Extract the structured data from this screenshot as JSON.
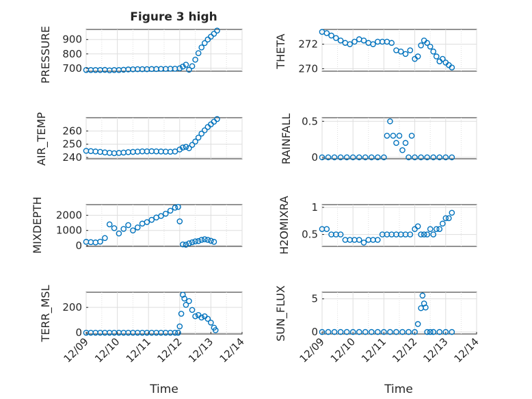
{
  "figure": {
    "title": "Figure 3 high",
    "xlabel": "Time"
  },
  "colors": {
    "marker": "#0072BD",
    "axis": "#262626",
    "grid": "#dddddd",
    "background": "#ffffff"
  },
  "chart_data": [
    {
      "type": "scatter",
      "id": "pressure",
      "ylabel": "PRESSURE",
      "ylim": [
        680,
        970
      ],
      "yticks": [
        700,
        800,
        900
      ],
      "xlim": [
        0,
        5
      ],
      "xticks": [],
      "x": [
        0.0,
        0.15,
        0.3,
        0.45,
        0.6,
        0.75,
        0.9,
        1.05,
        1.2,
        1.35,
        1.5,
        1.65,
        1.8,
        1.95,
        2.1,
        2.25,
        2.4,
        2.55,
        2.7,
        2.85,
        3.0,
        3.1,
        3.2,
        3.3,
        3.4,
        3.5,
        3.6,
        3.7,
        3.8,
        3.9,
        4.0,
        4.1,
        4.2
      ],
      "y": [
        688,
        688,
        688,
        688,
        689,
        686,
        688,
        688,
        690,
        692,
        693,
        694,
        694,
        694,
        695,
        695,
        696,
        696,
        697,
        697,
        700,
        712,
        725,
        690,
        715,
        760,
        805,
        845,
        875,
        900,
        920,
        940,
        962
      ]
    },
    {
      "type": "scatter",
      "id": "theta",
      "ylabel": "THETA",
      "ylim": [
        269.8,
        273.2
      ],
      "yticks": [
        270,
        272
      ],
      "xlim": [
        0,
        5
      ],
      "xticks": [],
      "x": [
        0.0,
        0.15,
        0.3,
        0.45,
        0.6,
        0.75,
        0.9,
        1.05,
        1.2,
        1.35,
        1.5,
        1.65,
        1.8,
        1.95,
        2.1,
        2.25,
        2.4,
        2.55,
        2.7,
        2.85,
        3.0,
        3.1,
        3.2,
        3.3,
        3.4,
        3.5,
        3.6,
        3.7,
        3.8,
        3.9,
        4.0,
        4.1,
        4.2
      ],
      "y": [
        273.0,
        272.9,
        272.7,
        272.5,
        272.3,
        272.1,
        272.0,
        272.2,
        272.4,
        272.3,
        272.1,
        272.0,
        272.2,
        272.2,
        272.2,
        272.1,
        271.5,
        271.4,
        271.2,
        271.5,
        270.8,
        271.0,
        271.9,
        272.3,
        272.1,
        271.8,
        271.4,
        271.0,
        270.6,
        270.8,
        270.5,
        270.3,
        270.1
      ]
    },
    {
      "type": "scatter",
      "id": "air-temp",
      "ylabel": "AIR_TEMP",
      "ylim": [
        239,
        270
      ],
      "yticks": [
        240,
        250,
        260
      ],
      "xlim": [
        0,
        5
      ],
      "xticks": [],
      "x": [
        0.0,
        0.15,
        0.3,
        0.45,
        0.6,
        0.75,
        0.9,
        1.05,
        1.2,
        1.35,
        1.5,
        1.65,
        1.8,
        1.95,
        2.1,
        2.25,
        2.4,
        2.55,
        2.7,
        2.85,
        3.0,
        3.1,
        3.2,
        3.3,
        3.4,
        3.5,
        3.6,
        3.7,
        3.8,
        3.9,
        4.0,
        4.1,
        4.2
      ],
      "y": [
        245,
        244.8,
        244.5,
        244.2,
        243.8,
        243.5,
        243.2,
        243.4,
        243.7,
        244.0,
        244.2,
        244.4,
        244.6,
        244.6,
        244.7,
        244.6,
        244.5,
        244.4,
        244.3,
        244.5,
        246,
        247.5,
        248,
        247,
        249.5,
        252,
        255,
        258,
        260.5,
        263,
        265,
        267,
        269
      ]
    },
    {
      "type": "scatter",
      "id": "mixdepth",
      "ylabel": "MIXDEPTH",
      "ylim": [
        -50,
        2700
      ],
      "yticks": [
        0,
        1000,
        2000
      ],
      "xlim": [
        0,
        5
      ],
      "xticks": [],
      "x": [
        0.0,
        0.15,
        0.3,
        0.45,
        0.6,
        0.75,
        0.9,
        1.05,
        1.2,
        1.35,
        1.5,
        1.65,
        1.8,
        1.95,
        2.1,
        2.25,
        2.4,
        2.55,
        2.7,
        2.85,
        2.95,
        3.0,
        3.1,
        3.2,
        3.3,
        3.4,
        3.5,
        3.6,
        3.7,
        3.8,
        3.9,
        4.0,
        4.1
      ],
      "y": [
        250,
        230,
        210,
        260,
        500,
        1400,
        1150,
        800,
        1100,
        1350,
        1000,
        1200,
        1450,
        1550,
        1700,
        1850,
        1950,
        2100,
        2300,
        2500,
        2550,
        1600,
        80,
        60,
        150,
        220,
        280,
        300,
        380,
        420,
        380,
        320,
        250
      ]
    },
    {
      "type": "scatter",
      "id": "terr-msl",
      "ylabel": "TERR_MSL",
      "ylim": [
        -10,
        320
      ],
      "yticks": [
        0,
        200
      ],
      "xlim": [
        0,
        5
      ],
      "xticks": [
        "12/09",
        "12/10",
        "12/11",
        "12/12",
        "12/13",
        "12/14"
      ],
      "x": [
        0.0,
        0.15,
        0.3,
        0.45,
        0.6,
        0.75,
        0.9,
        1.05,
        1.2,
        1.35,
        1.5,
        1.65,
        1.8,
        1.95,
        2.1,
        2.25,
        2.4,
        2.55,
        2.7,
        2.85,
        2.95,
        3.0,
        3.05,
        3.1,
        3.15,
        3.2,
        3.3,
        3.4,
        3.5,
        3.6,
        3.7,
        3.8,
        3.9,
        4.0,
        4.1,
        4.15
      ],
      "y": [
        0,
        0,
        0,
        0,
        0,
        0,
        0,
        0,
        0,
        0,
        0,
        0,
        0,
        0,
        0,
        0,
        0,
        0,
        0,
        0,
        0,
        50,
        150,
        300,
        270,
        220,
        250,
        180,
        130,
        140,
        120,
        130,
        110,
        80,
        40,
        20
      ]
    },
    {
      "type": "scatter",
      "id": "rainfall",
      "ylabel": "RAINFALL",
      "ylim": [
        -0.02,
        0.55
      ],
      "yticks": [
        0,
        0.5
      ],
      "xlim": [
        0,
        5
      ],
      "xticks": [],
      "x": [
        0.0,
        0.2,
        0.4,
        0.6,
        0.8,
        1.0,
        1.2,
        1.4,
        1.6,
        1.8,
        2.0,
        2.1,
        2.2,
        2.3,
        2.4,
        2.5,
        2.6,
        2.7,
        2.8,
        2.9,
        3.0,
        3.2,
        3.4,
        3.6,
        3.8,
        4.0,
        4.2
      ],
      "y": [
        0,
        0,
        0,
        0,
        0,
        0,
        0,
        0,
        0,
        0,
        0,
        0.3,
        0.5,
        0.3,
        0.2,
        0.3,
        0.1,
        0.2,
        0,
        0.3,
        0,
        0,
        0,
        0,
        0,
        0,
        0
      ]
    },
    {
      "type": "scatter",
      "id": "h2omixra",
      "ylabel": "H2OMIXRA",
      "ylim": [
        0.28,
        1.05
      ],
      "yticks": [
        0.5,
        1
      ],
      "xlim": [
        0,
        5
      ],
      "xticks": [],
      "x": [
        0.0,
        0.15,
        0.3,
        0.45,
        0.6,
        0.75,
        0.9,
        1.05,
        1.2,
        1.35,
        1.5,
        1.65,
        1.8,
        1.95,
        2.1,
        2.25,
        2.4,
        2.55,
        2.7,
        2.85,
        3.0,
        3.1,
        3.2,
        3.3,
        3.4,
        3.5,
        3.6,
        3.7,
        3.8,
        3.9,
        4.0,
        4.1,
        4.2
      ],
      "y": [
        0.6,
        0.6,
        0.5,
        0.5,
        0.5,
        0.4,
        0.4,
        0.4,
        0.4,
        0.35,
        0.4,
        0.4,
        0.4,
        0.5,
        0.5,
        0.5,
        0.5,
        0.5,
        0.5,
        0.5,
        0.6,
        0.65,
        0.5,
        0.5,
        0.5,
        0.6,
        0.5,
        0.6,
        0.6,
        0.7,
        0.8,
        0.8,
        0.9
      ]
    },
    {
      "type": "scatter",
      "id": "sun-flux",
      "ylabel": "SUN_FLUX",
      "ylim": [
        -0.3,
        6
      ],
      "yticks": [
        0,
        5
      ],
      "xlim": [
        0,
        5
      ],
      "xticks": [
        "12/09",
        "12/10",
        "12/11",
        "12/12",
        "12/13",
        "12/14"
      ],
      "x": [
        0.0,
        0.2,
        0.4,
        0.6,
        0.8,
        1.0,
        1.2,
        1.4,
        1.6,
        1.8,
        2.0,
        2.2,
        2.4,
        2.6,
        2.8,
        3.0,
        3.1,
        3.2,
        3.25,
        3.3,
        3.35,
        3.4,
        3.5,
        3.6,
        3.8,
        4.0,
        4.2
      ],
      "y": [
        0,
        0,
        0,
        0,
        0,
        0,
        0,
        0,
        0,
        0,
        0,
        0,
        0,
        0,
        0,
        0,
        1.2,
        3.6,
        5.5,
        4.3,
        3.7,
        0,
        0,
        0,
        0,
        0,
        0
      ]
    }
  ]
}
